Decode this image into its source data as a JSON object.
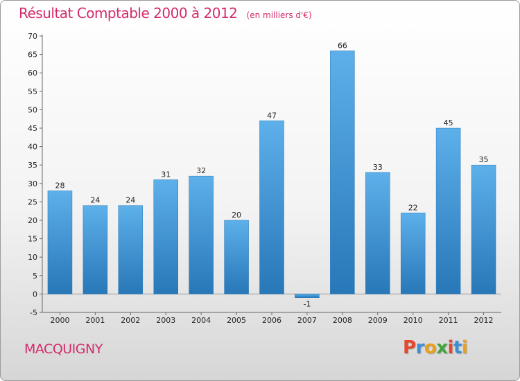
{
  "header": {
    "title": "Résultat Comptable 2000 à 2012",
    "subtitle": "(en milliers d'€)"
  },
  "footer": {
    "town": "MACQUIGNY",
    "brand_letters": [
      "P",
      "r",
      "o",
      "x",
      "i",
      "t",
      "i"
    ]
  },
  "colors": {
    "bar_top": "#5db0ea",
    "bar_bottom": "#2877b8",
    "title": "#d42a6c",
    "brand": [
      "#e8452c",
      "#3a8fd6",
      "#e8a020",
      "#43a63c",
      "#e8452c",
      "#3a8fd6",
      "#e8a020"
    ]
  },
  "chart_data": {
    "type": "bar",
    "title": "Résultat Comptable 2000 à 2012",
    "ylabel": "en milliers d'€",
    "xlabel": "",
    "categories": [
      "2000",
      "2001",
      "2002",
      "2003",
      "2004",
      "2005",
      "2006",
      "2007",
      "2008",
      "2009",
      "2010",
      "2011",
      "2012"
    ],
    "values": [
      28,
      24,
      24,
      31,
      32,
      20,
      47,
      -1,
      66,
      33,
      22,
      45,
      35
    ],
    "data_labels": [
      "28",
      "24",
      "24",
      "31",
      "32",
      "20",
      "47",
      "-1",
      "66",
      "33",
      "22",
      "45",
      "35"
    ],
    "ylim": [
      -5,
      70
    ],
    "yticks": [
      "-5",
      "0",
      "5",
      "10",
      "15",
      "20",
      "25",
      "30",
      "35",
      "40",
      "45",
      "50",
      "55",
      "60",
      "65",
      "70"
    ],
    "grid": false
  }
}
